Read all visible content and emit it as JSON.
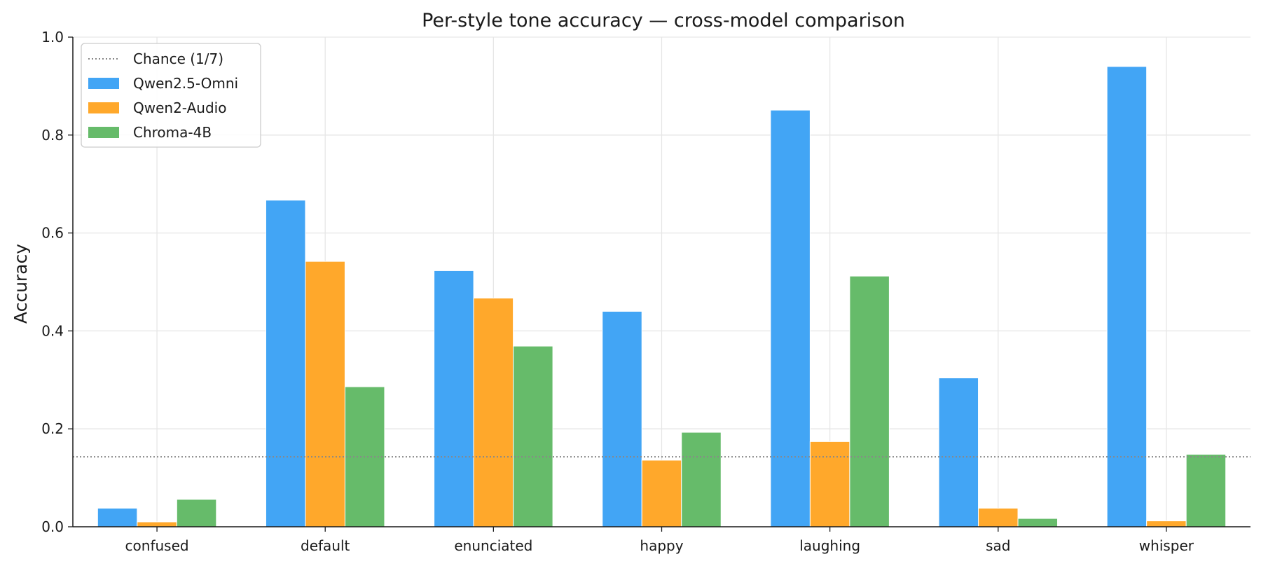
{
  "chart_data": {
    "type": "bar",
    "title": "Per-style tone accuracy — cross-model comparison",
    "xlabel": "",
    "ylabel": "Accuracy",
    "ylim": [
      0,
      1.0
    ],
    "yticks": [
      "0.0",
      "0.2",
      "0.4",
      "0.6",
      "0.8",
      "1.0"
    ],
    "categories": [
      "confused",
      "default",
      "enunciated",
      "happy",
      "laughing",
      "sad",
      "whisper"
    ],
    "series": [
      {
        "name": "Qwen2.5-Omni",
        "color": "#42a5f5",
        "values": [
          0.038,
          0.667,
          0.523,
          0.44,
          0.851,
          0.304,
          0.94
        ]
      },
      {
        "name": "Qwen2-Audio",
        "color": "#ffa82b",
        "values": [
          0.01,
          0.542,
          0.467,
          0.136,
          0.174,
          0.038,
          0.012
        ]
      },
      {
        "name": "Chroma-4B",
        "color": "#66bb6a",
        "values": [
          0.056,
          0.286,
          0.369,
          0.193,
          0.512,
          0.017,
          0.148
        ]
      }
    ],
    "reference_line": {
      "label": "Chance (1/7)",
      "value": 0.142857,
      "color": "#888888",
      "style": "dotted"
    },
    "grid": true,
    "legend_position": "top-left"
  }
}
